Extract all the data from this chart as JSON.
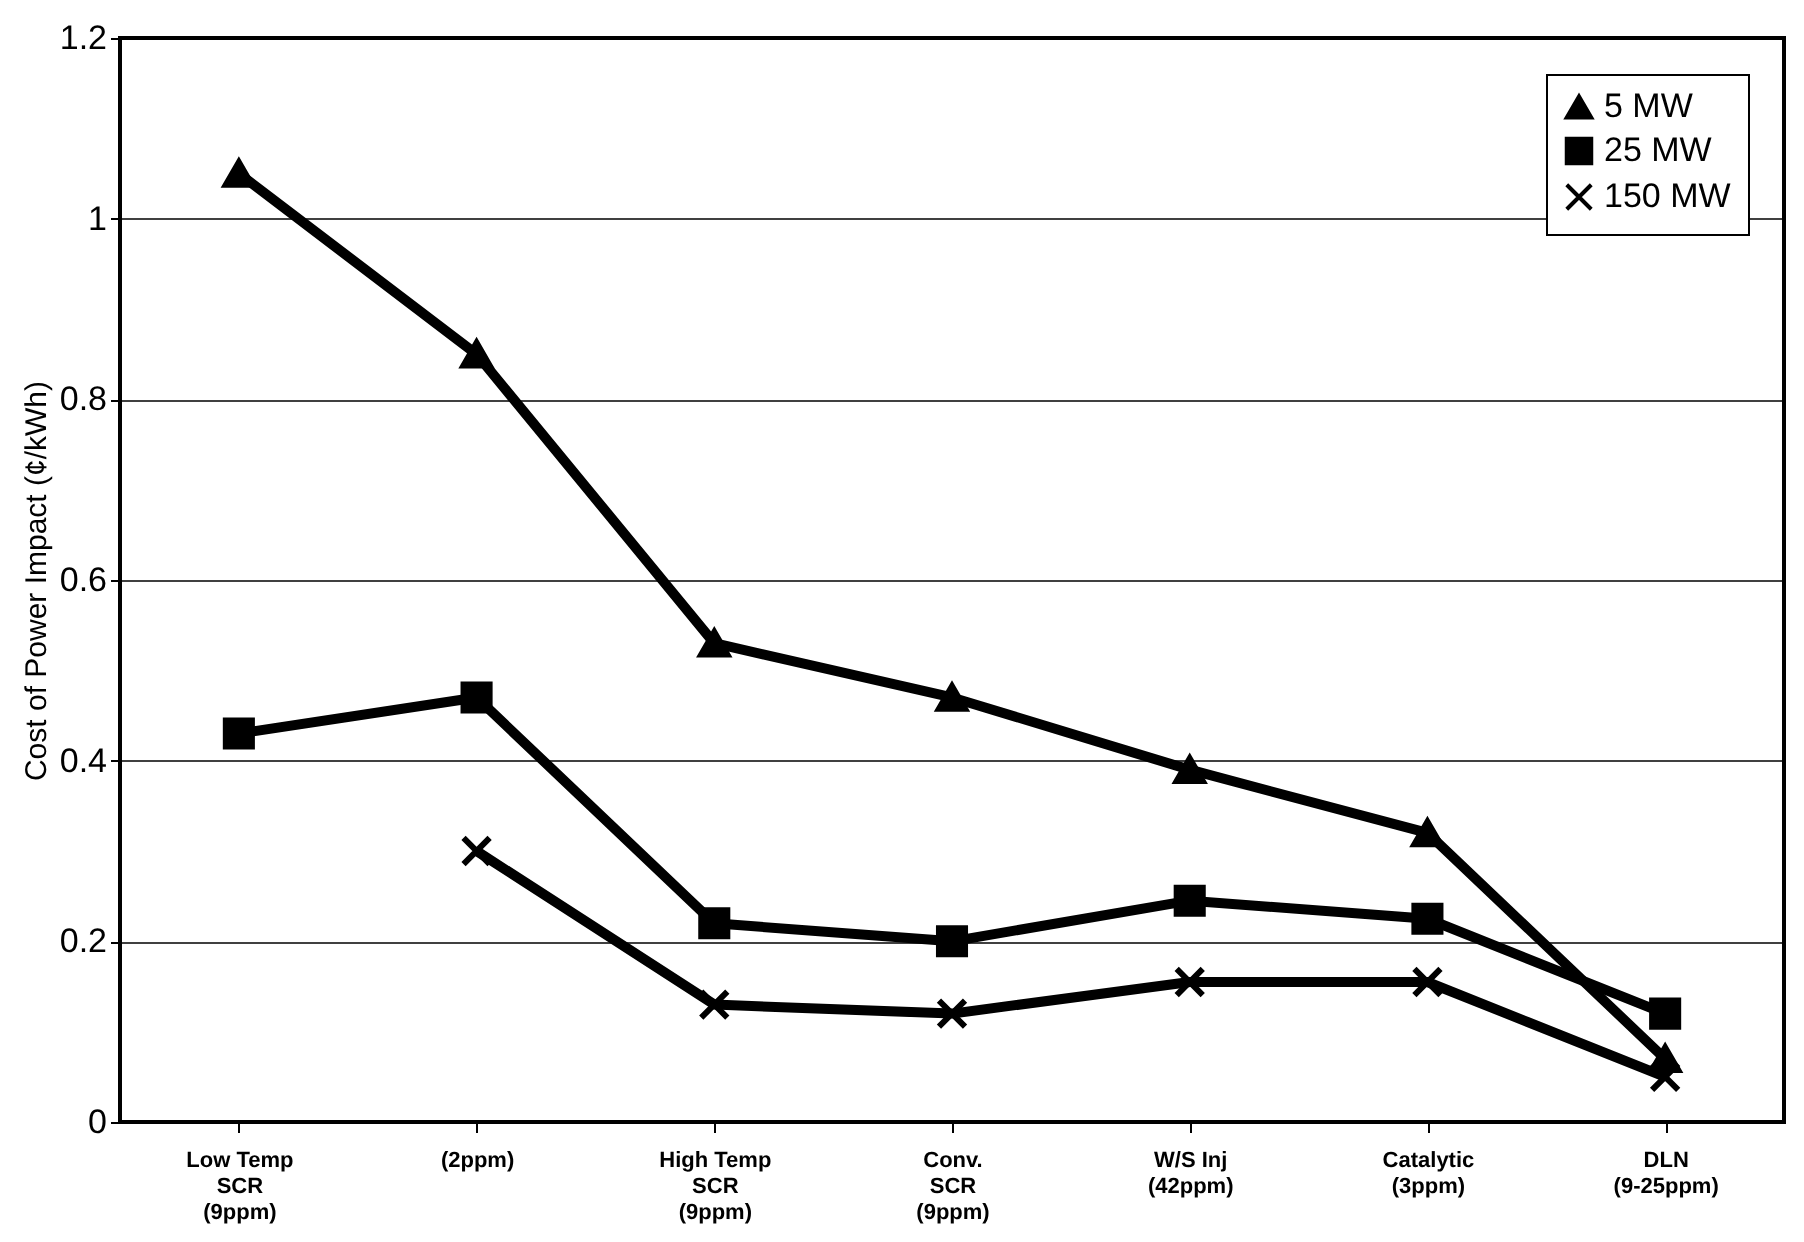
{
  "chart_data": {
    "type": "line",
    "ylabel": "Cost of Power Impact (¢/kWh)",
    "categories": [
      "Low Temp\nSCR\n(9ppm)",
      "(2ppm)",
      "High Temp\nSCR\n(9ppm)",
      "Conv.\nSCR\n(9ppm)",
      "W/S Inj\n(42ppm)",
      "Catalytic\n(3ppm)",
      "DLN\n(9-25ppm)"
    ],
    "series": [
      {
        "name": "5 MW",
        "color": "#000000",
        "marker": "triangle",
        "values": [
          1.05,
          0.85,
          0.53,
          0.47,
          0.39,
          0.32,
          0.07
        ]
      },
      {
        "name": "25 MW",
        "color": "#000000",
        "marker": "square",
        "values": [
          0.43,
          0.47,
          0.22,
          0.2,
          0.245,
          0.225,
          0.12
        ]
      },
      {
        "name": "150 MW",
        "color": "#000000",
        "marker": "cross",
        "values": [
          null,
          0.3,
          0.13,
          0.12,
          0.155,
          0.155,
          0.05
        ]
      }
    ],
    "ylim": [
      0,
      1.2
    ],
    "yticks": [
      0,
      0.2,
      0.4,
      0.6,
      0.8,
      1,
      1.2
    ],
    "grid": "y",
    "legend": "top right",
    "line_style": "solid"
  }
}
